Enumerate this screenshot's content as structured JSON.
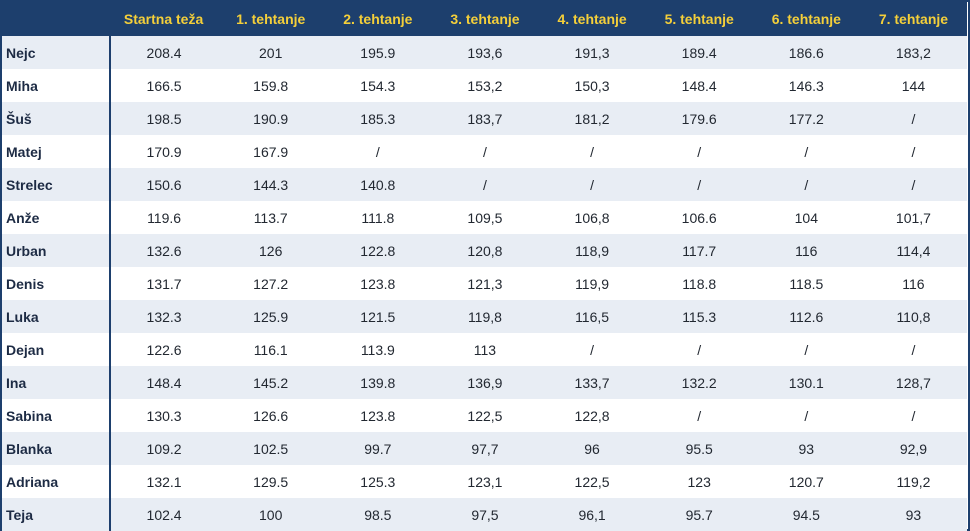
{
  "table": {
    "headers": [
      "",
      "Startna teža",
      "1. tehtanje",
      "2. tehtanje",
      "3. tehtanje",
      "4. tehtanje",
      "5. tehtanje",
      "6. tehtanje",
      "7. tehtanje"
    ],
    "rows": [
      {
        "name": "Nejc",
        "values": [
          "208.4",
          "201",
          "195.9",
          "193,6",
          "191,3",
          "189.4",
          "186.6",
          "183,2"
        ]
      },
      {
        "name": "Miha",
        "values": [
          "166.5",
          "159.8",
          "154.3",
          "153,2",
          "150,3",
          "148.4",
          "146.3",
          "144"
        ]
      },
      {
        "name": "Šuš",
        "values": [
          "198.5",
          "190.9",
          "185.3",
          "183,7",
          "181,2",
          "179.6",
          "177.2",
          "/"
        ]
      },
      {
        "name": "Matej",
        "values": [
          "170.9",
          "167.9",
          "/",
          "/",
          "/",
          "/",
          "/",
          "/"
        ]
      },
      {
        "name": "Strelec",
        "values": [
          "150.6",
          "144.3",
          "140.8",
          "/",
          "/",
          "/",
          "/",
          "/"
        ]
      },
      {
        "name": "Anže",
        "values": [
          "119.6",
          "113.7",
          "111.8",
          "109,5",
          "106,8",
          "106.6",
          "104",
          "101,7"
        ]
      },
      {
        "name": "Urban",
        "values": [
          "132.6",
          "126",
          "122.8",
          "120,8",
          "118,9",
          "117.7",
          "116",
          "114,4"
        ]
      },
      {
        "name": "Denis",
        "values": [
          "131.7",
          "127.2",
          "123.8",
          "121,3",
          "119,9",
          "118.8",
          "118.5",
          "116"
        ]
      },
      {
        "name": "Luka",
        "values": [
          "132.3",
          "125.9",
          "121.5",
          "119,8",
          "116,5",
          "115.3",
          "112.6",
          "110,8"
        ]
      },
      {
        "name": "Dejan",
        "values": [
          "122.6",
          "116.1",
          "113.9",
          "113",
          "/",
          "/",
          "/",
          "/"
        ]
      },
      {
        "name": "Ina",
        "values": [
          "148.4",
          "145.2",
          "139.8",
          "136,9",
          "133,7",
          "132.2",
          "130.1",
          "128,7"
        ]
      },
      {
        "name": "Sabina",
        "values": [
          "130.3",
          "126.6",
          "123.8",
          "122,5",
          "122,8",
          "/",
          "/",
          "/"
        ]
      },
      {
        "name": "Blanka",
        "values": [
          "109.2",
          "102.5",
          "99.7",
          "97,7",
          "96",
          "95.5",
          "93",
          "92,9"
        ]
      },
      {
        "name": "Adriana",
        "values": [
          "132.1",
          "129.5",
          "125.3",
          "123,1",
          "122,5",
          "123",
          "120.7",
          "119,2"
        ]
      },
      {
        "name": "Teja",
        "values": [
          "102.4",
          "100",
          "98.5",
          "97,5",
          "96,1",
          "95.7",
          "94.5",
          "93"
        ]
      }
    ]
  },
  "colors": {
    "header_bg": "#1d3f6d",
    "header_text": "#f4cf3a",
    "row_stripe": "#e8edf4"
  }
}
